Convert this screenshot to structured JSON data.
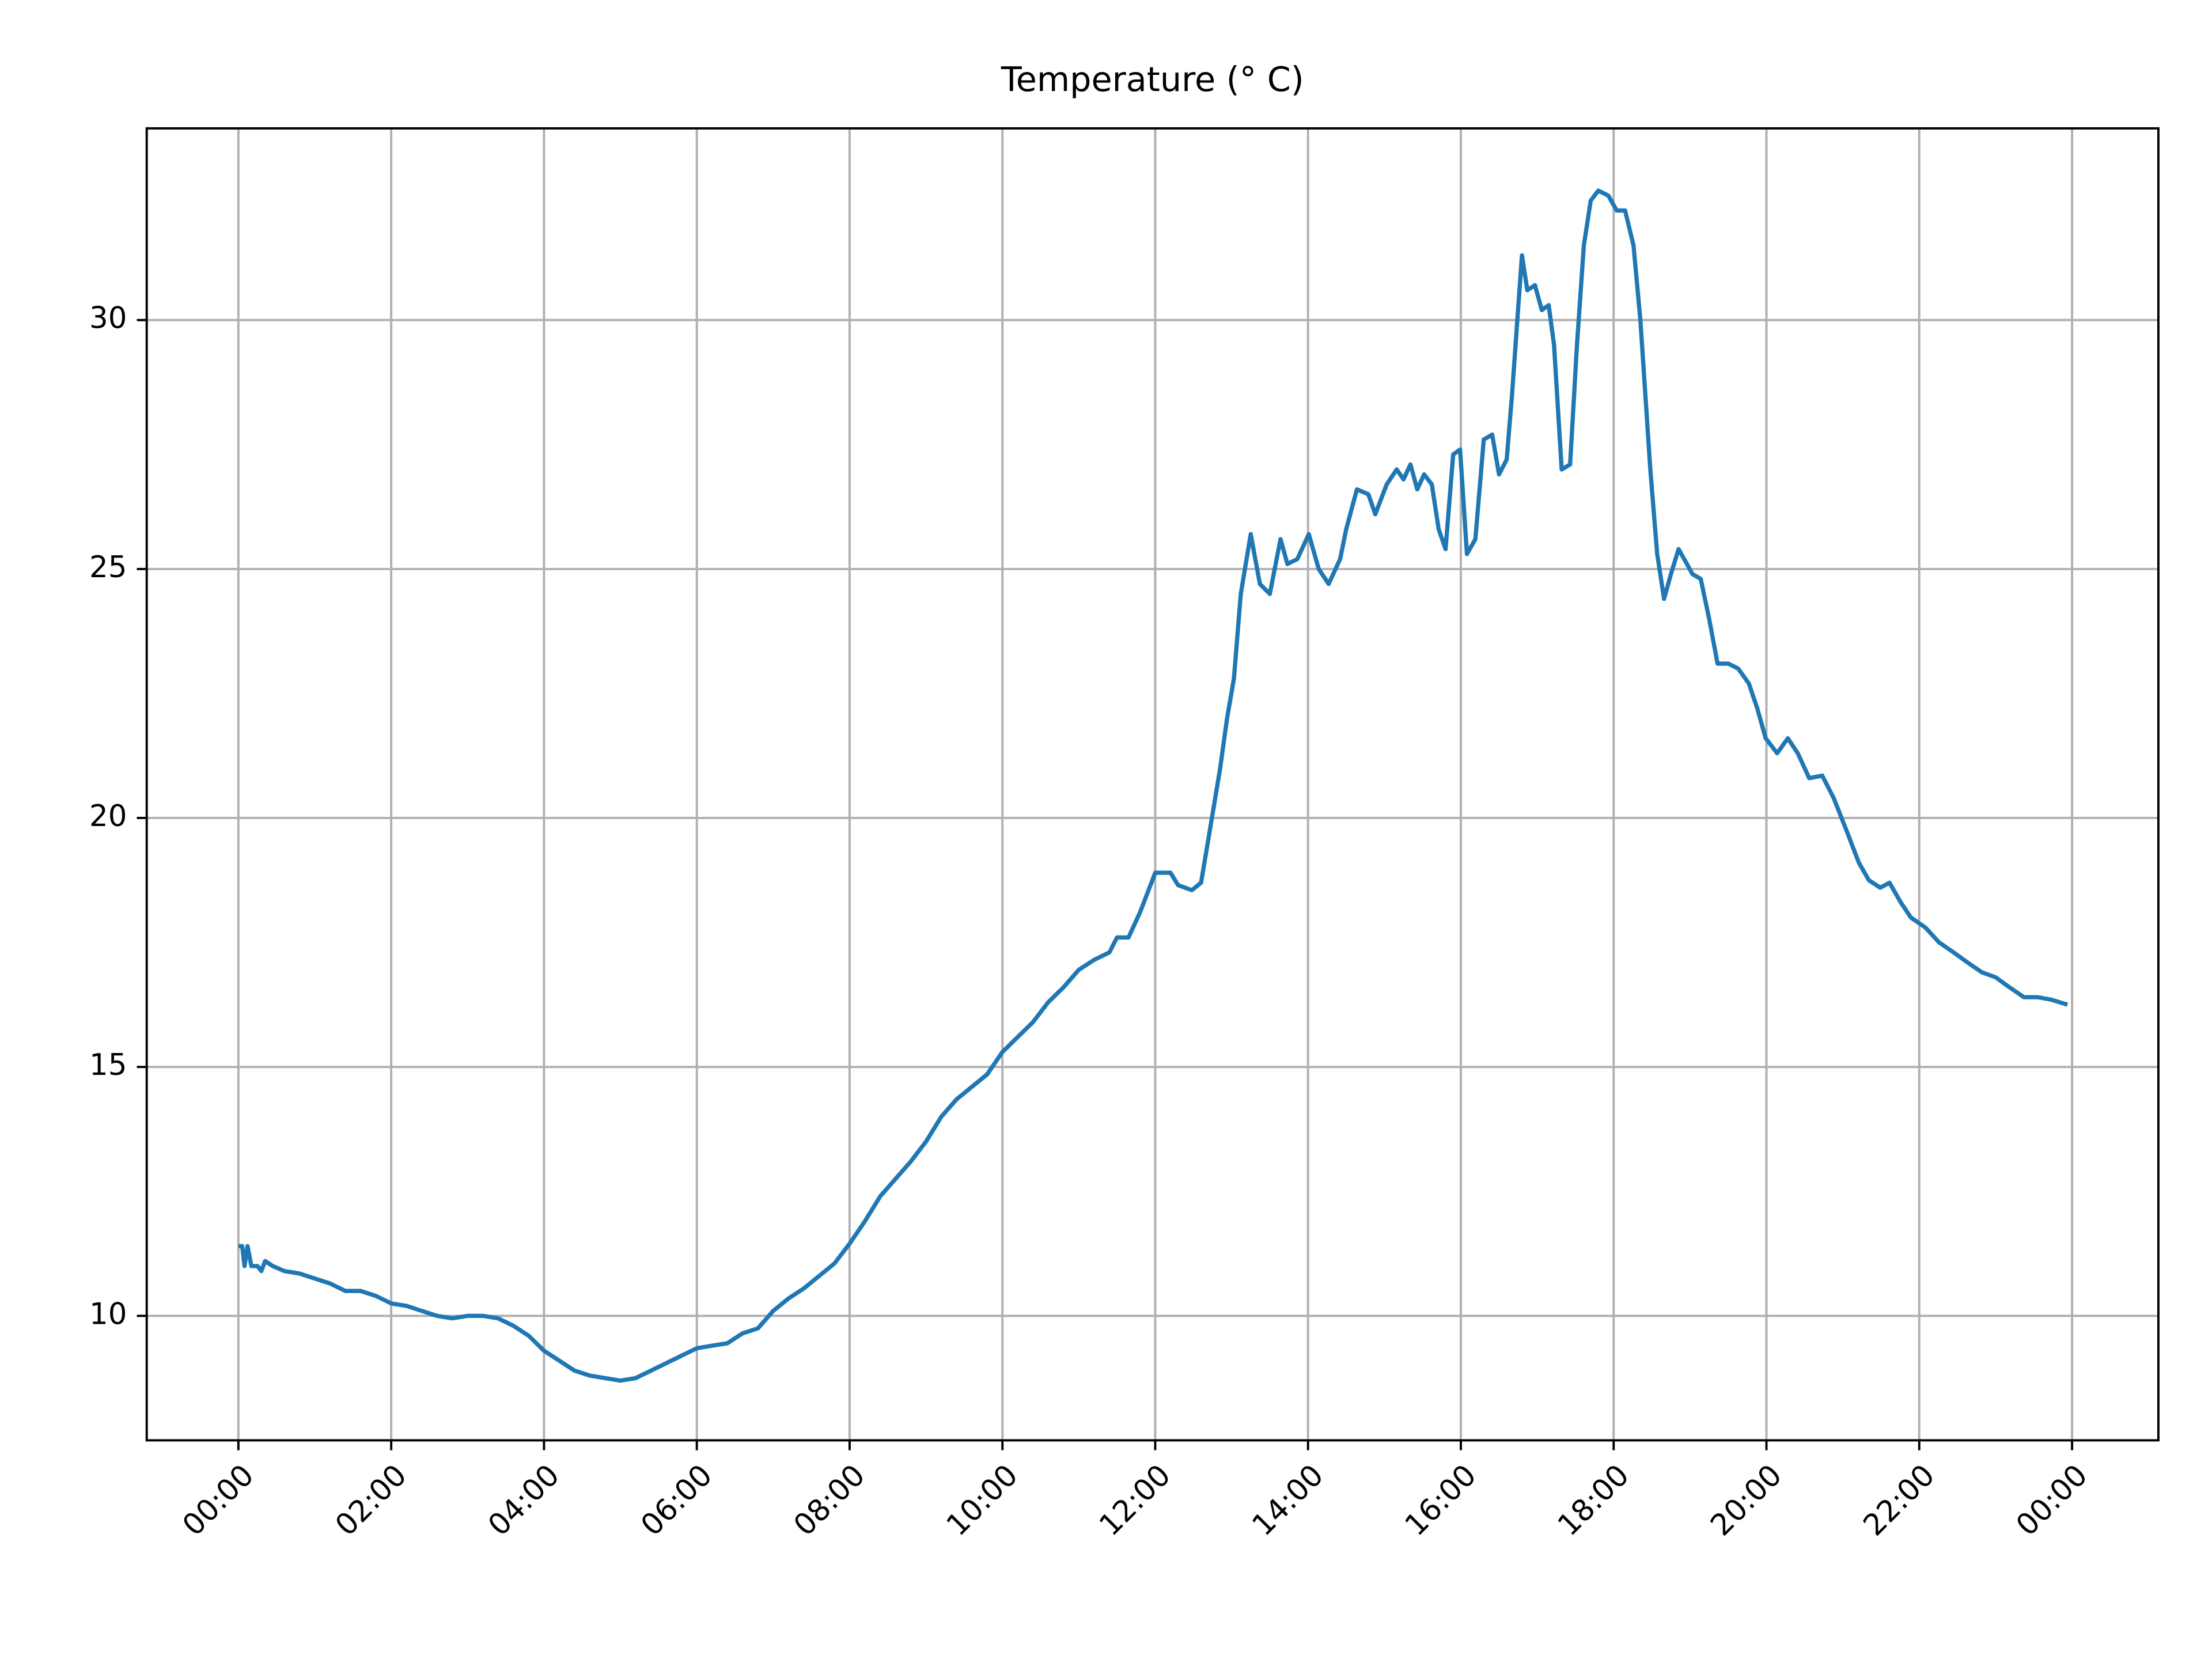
{
  "chart_data": {
    "type": "line",
    "title": "Temperature (° C)",
    "x": [
      0.0,
      0.05,
      0.08,
      0.12,
      0.17,
      0.25,
      0.3,
      0.35,
      0.45,
      0.6,
      0.8,
      1.0,
      1.2,
      1.4,
      1.6,
      1.8,
      2.0,
      2.2,
      2.4,
      2.6,
      2.8,
      3.0,
      3.2,
      3.4,
      3.6,
      3.8,
      4.0,
      4.2,
      4.4,
      4.6,
      4.8,
      5.0,
      5.2,
      5.4,
      5.6,
      5.8,
      6.0,
      6.2,
      6.4,
      6.6,
      6.8,
      7.0,
      7.2,
      7.4,
      7.6,
      7.8,
      8.0,
      8.2,
      8.4,
      8.6,
      8.8,
      9.0,
      9.2,
      9.4,
      9.6,
      9.8,
      10.0,
      10.2,
      10.4,
      10.6,
      10.8,
      11.0,
      11.2,
      11.4,
      11.5,
      11.65,
      11.8,
      12.0,
      12.2,
      12.3,
      12.48,
      12.6,
      12.72,
      12.85,
      12.94,
      13.03,
      13.12,
      13.25,
      13.37,
      13.5,
      13.64,
      13.73,
      13.86,
      14.01,
      14.14,
      14.27,
      14.42,
      14.5,
      14.64,
      14.79,
      14.88,
      15.03,
      15.16,
      15.25,
      15.34,
      15.43,
      15.52,
      15.62,
      15.71,
      15.8,
      15.9,
      15.99,
      16.08,
      16.19,
      16.3,
      16.41,
      16.5,
      16.6,
      16.67,
      16.73,
      16.8,
      16.87,
      16.97,
      17.06,
      17.15,
      17.22,
      17.32,
      17.43,
      17.52,
      17.61,
      17.7,
      17.8,
      17.93,
      18.04,
      18.15,
      18.26,
      18.35,
      18.48,
      18.57,
      18.66,
      18.75,
      18.85,
      18.96,
      19.03,
      19.14,
      19.25,
      19.36,
      19.5,
      19.63,
      19.77,
      19.88,
      19.99,
      20.14,
      20.28,
      20.41,
      20.56,
      20.73,
      20.88,
      21.06,
      21.21,
      21.34,
      21.49,
      21.61,
      21.76,
      21.89,
      22.08,
      22.26,
      22.45,
      22.63,
      22.82,
      23.0,
      23.18,
      23.37,
      23.55,
      23.73,
      23.94
    ],
    "values": [
      11.4,
      11.4,
      11.0,
      11.4,
      11.0,
      11.0,
      10.9,
      11.1,
      11.0,
      10.9,
      10.85,
      10.75,
      10.65,
      10.5,
      10.5,
      10.4,
      10.25,
      10.2,
      10.1,
      10.0,
      9.95,
      10.0,
      10.0,
      9.95,
      9.8,
      9.6,
      9.3,
      9.1,
      8.9,
      8.8,
      8.75,
      8.7,
      8.75,
      8.9,
      9.05,
      9.2,
      9.35,
      9.4,
      9.45,
      9.65,
      9.75,
      10.1,
      10.35,
      10.55,
      10.8,
      11.05,
      11.45,
      11.9,
      12.4,
      12.75,
      13.1,
      13.5,
      14.0,
      14.35,
      14.6,
      14.85,
      15.3,
      15.6,
      15.9,
      16.3,
      16.6,
      16.95,
      17.15,
      17.3,
      17.6,
      17.6,
      18.1,
      18.9,
      18.9,
      18.65,
      18.55,
      18.7,
      19.8,
      21.0,
      22.0,
      22.8,
      24.5,
      25.7,
      24.7,
      24.5,
      25.6,
      25.1,
      25.2,
      25.7,
      25.0,
      24.7,
      25.2,
      25.8,
      26.6,
      26.5,
      26.1,
      26.7,
      27.0,
      26.8,
      27.1,
      26.6,
      26.9,
      26.7,
      25.8,
      25.4,
      27.3,
      27.4,
      25.3,
      25.6,
      27.6,
      27.7,
      26.9,
      27.2,
      28.5,
      29.8,
      31.3,
      30.6,
      30.7,
      30.2,
      30.3,
      29.5,
      27.0,
      27.1,
      29.5,
      31.5,
      32.4,
      32.6,
      32.5,
      32.2,
      32.2,
      31.5,
      30.0,
      27.0,
      25.3,
      24.4,
      24.9,
      25.4,
      25.1,
      24.9,
      24.8,
      24.0,
      23.1,
      23.1,
      23.0,
      22.7,
      22.2,
      21.6,
      21.3,
      21.6,
      21.3,
      20.8,
      20.85,
      20.4,
      19.7,
      19.1,
      18.75,
      18.6,
      18.7,
      18.3,
      18.0,
      17.8,
      17.5,
      17.3,
      17.1,
      16.9,
      16.8,
      16.6,
      16.4,
      16.4,
      16.35,
      16.25
    ],
    "color": "#1f77b4",
    "xlim": [
      -1.2,
      25.13
    ],
    "xticks": [
      {
        "value": 0,
        "label": "00:00"
      },
      {
        "value": 2,
        "label": "02:00"
      },
      {
        "value": 4,
        "label": "04:00"
      },
      {
        "value": 6,
        "label": "06:00"
      },
      {
        "value": 8,
        "label": "08:00"
      },
      {
        "value": 10,
        "label": "10:00"
      },
      {
        "value": 12,
        "label": "12:00"
      },
      {
        "value": 14,
        "label": "14:00"
      },
      {
        "value": 16,
        "label": "16:00"
      },
      {
        "value": 18,
        "label": "18:00"
      },
      {
        "value": 20,
        "label": "20:00"
      },
      {
        "value": 22,
        "label": "22:00"
      },
      {
        "value": 24,
        "label": "00:00"
      }
    ],
    "ylim": [
      7.5,
      33.85
    ],
    "yticks": [
      10,
      15,
      20,
      25,
      30
    ],
    "grid": true
  }
}
